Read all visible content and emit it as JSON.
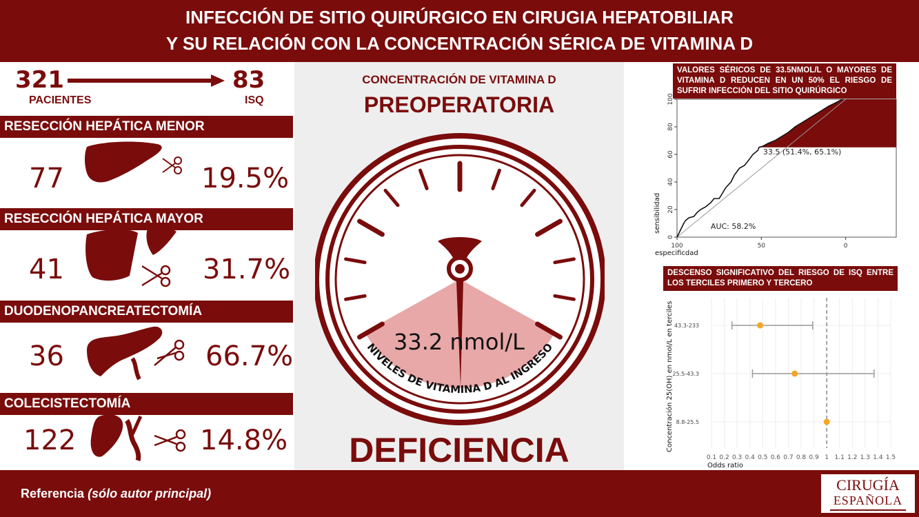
{
  "header": {
    "line1": "INFECCIÓN DE SITIO QUIRÚRGICO EN CIRUGIA HEPATOBILIAR",
    "line2": "Y SU RELACIÓN CON LA CONCENTRACIÓN SÉRICA DE VITAMINA D"
  },
  "summary": {
    "patients_count": "321",
    "patients_label": "PACIENTES",
    "isq_count": "83",
    "isq_label": "ISQ"
  },
  "sections": [
    {
      "title": "RESECCIÓN HEPÁTICA MENOR",
      "count": "77",
      "percent": "19.5%"
    },
    {
      "title": "RESECCIÓN HEPÁTICA MAYOR",
      "count": "41",
      "percent": "31.7%"
    },
    {
      "title": "DUODENOPANCREATECTOMÍA",
      "count": "36",
      "percent": "66.7%"
    },
    {
      "title": "COLECISTECTOMÍA",
      "count": "122",
      "percent": "14.8%"
    }
  ],
  "middle": {
    "title_small": "CONCENTRACIÓN DE VITAMINA D",
    "title_big": "PREOPERATORIA",
    "gauge_value": "33.2 nmol/L",
    "gauge_arc_label": "NIVELES DE VITAMINA D AL INGRESO",
    "bottom_word": "DEFICIENCIA"
  },
  "roc": {
    "heading": "VALORES SÉRICOS DE 33.5NMOL/L O MAYORES DE VITAMINA D REDUCEN EN UN 50% EL RIESGO DE SUFRIR INFECCIÓN DEL SITIO QUIRÚRGICO",
    "annotation": "33.5 (51.4%, 65.1%)",
    "auc": "AUC: 58.2%",
    "ylabel": "sensibilidad",
    "xlabel": "especificdad",
    "y_ticks": [
      "0",
      "20",
      "40",
      "60",
      "80",
      "100"
    ],
    "x_ticks": [
      "100",
      "50",
      "0"
    ]
  },
  "forest": {
    "heading": "DESCENSO SIGNIFICATIVO DEL RIESGO DE ISQ ENTRE LOS TERCILES PRIMERO Y TERCERO",
    "ylabel": "Concentración 25(OH) en nmol/L en terciles",
    "xlabel": "Odds ratio",
    "x_ticks": [
      "0.1",
      "0.2",
      "0.3",
      "0.4",
      "0.5",
      "0.6",
      "0.7",
      "0.8",
      "0.9",
      "1",
      "1.1",
      "1.2",
      "1.3",
      "1.4",
      "1.5"
    ]
  },
  "chart_data": [
    {
      "type": "line",
      "x": [
        100,
        98,
        96,
        95,
        93,
        90,
        88,
        86,
        83,
        80,
        78,
        75,
        73,
        71,
        68,
        66,
        63,
        60,
        58,
        55,
        52,
        51.4,
        49,
        46,
        42,
        38,
        34,
        30,
        26,
        22,
        18,
        14,
        10,
        5,
        2
      ],
      "y": [
        0,
        5,
        10,
        12,
        14,
        15,
        18,
        20,
        22,
        25,
        28,
        28,
        32,
        36,
        40,
        45,
        50,
        52,
        55,
        60,
        63,
        65.1,
        66,
        68,
        70,
        73,
        76,
        80,
        83,
        86,
        89,
        92,
        95,
        98,
        100
      ],
      "xlabel": "especificdad",
      "ylabel": "sensibilidad",
      "xlim": [
        100,
        -30
      ],
      "ylim": [
        0,
        100
      ],
      "annotations": [
        "33.5 (51.4%, 65.1%)",
        "AUC: 58.2%"
      ]
    },
    {
      "type": "scatter",
      "categories": [
        "43.3-233",
        "25.5-43.3",
        "8.8-25.5"
      ],
      "values": [
        0.48,
        0.75,
        1.0
      ],
      "ci_low": [
        0.26,
        0.42,
        1.0
      ],
      "ci_high": [
        0.89,
        1.37,
        1.0
      ],
      "reference_line": 1,
      "xlabel": "Odds ratio",
      "ylabel": "Concentración 25(OH) en nmol/L en terciles",
      "xlim": [
        0.1,
        1.5
      ]
    }
  ],
  "footer": {
    "reference_label": "Referencia ",
    "reference_note": "(sólo autor principal)",
    "logo_line1": "CIRUGÍA",
    "logo_line2": "ESPAÑOLA"
  },
  "colors": {
    "primary": "#7a0c0c",
    "pink": "#e8a8a8",
    "orange": "#f5a623"
  }
}
